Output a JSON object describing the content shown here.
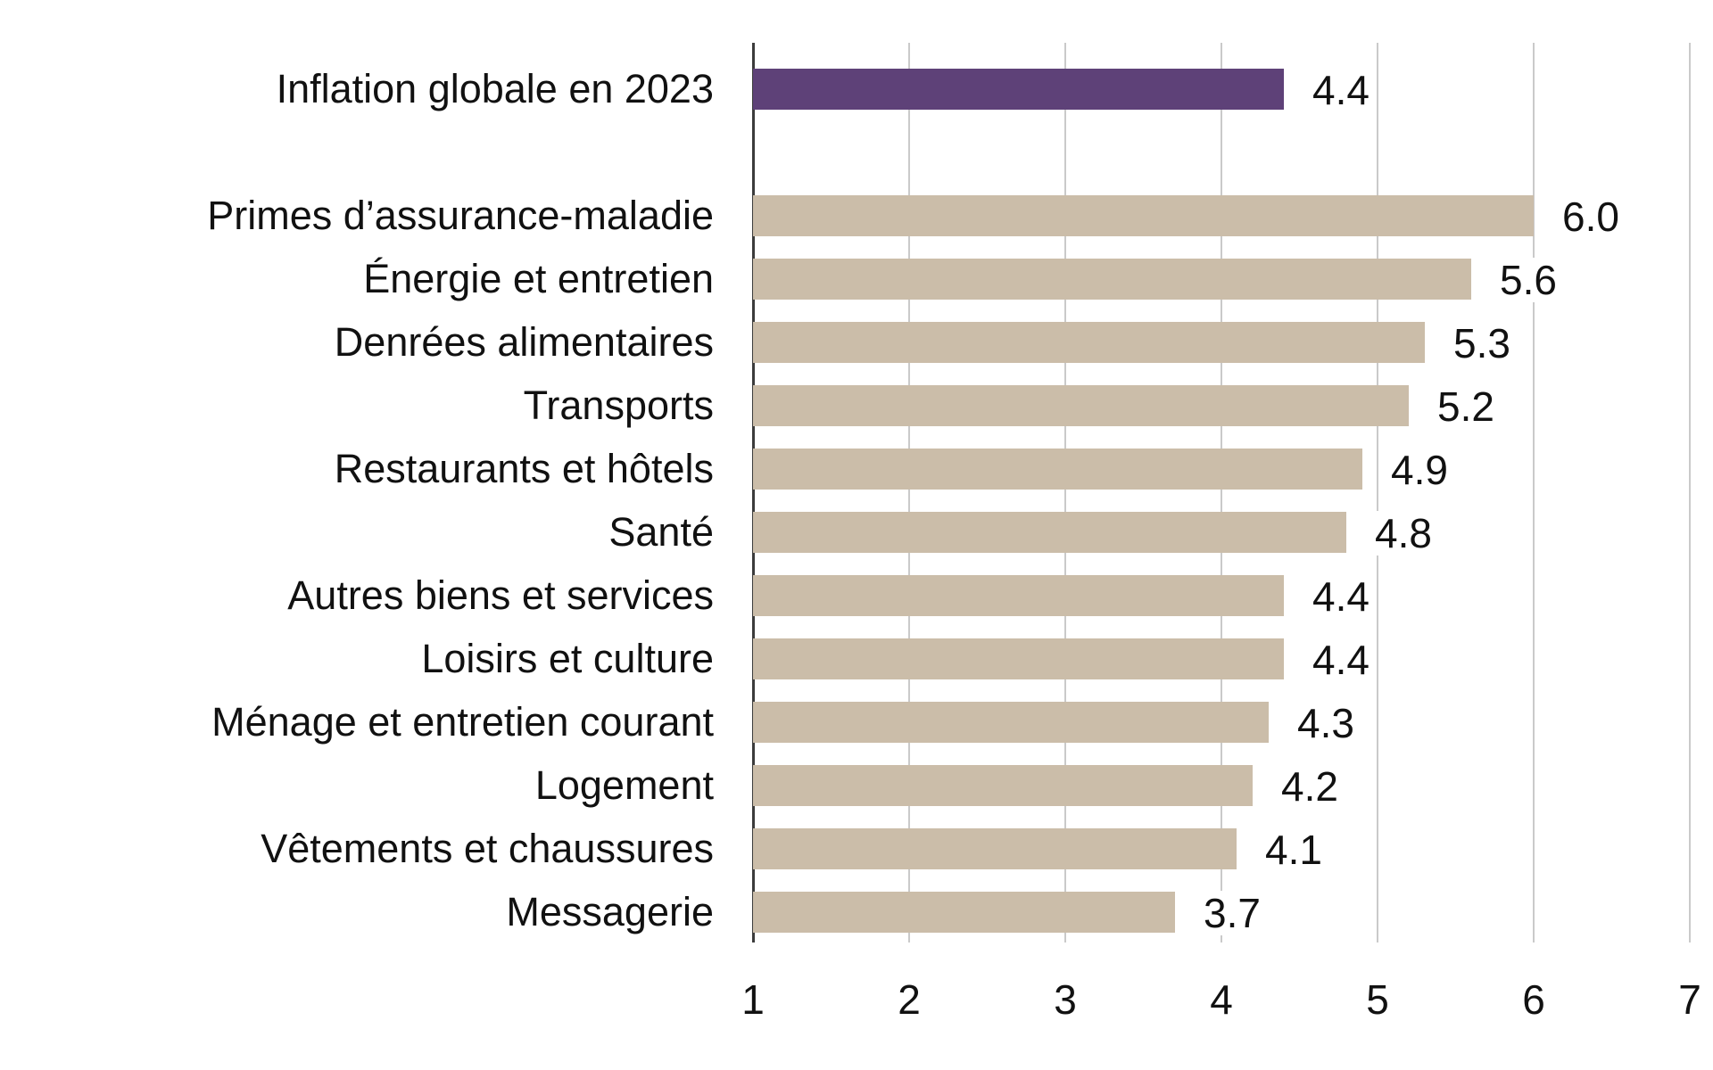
{
  "chart_data": {
    "type": "bar",
    "orientation": "horizontal",
    "title": "",
    "rows": [
      {
        "label": "Inflation globale en 2023",
        "value": 4.4,
        "display": "4.4",
        "highlight": true
      },
      {
        "label": "Primes d’assurance-maladie",
        "value": 6.0,
        "display": "6.0",
        "highlight": false
      },
      {
        "label": "Énergie et entretien",
        "value": 5.6,
        "display": "5.6",
        "highlight": false
      },
      {
        "label": "Denrées alimentaires",
        "value": 5.3,
        "display": "5.3",
        "highlight": false
      },
      {
        "label": "Transports",
        "value": 5.2,
        "display": "5.2",
        "highlight": false
      },
      {
        "label": "Restaurants et hôtels",
        "value": 4.9,
        "display": "4.9",
        "highlight": false
      },
      {
        "label": "Santé",
        "value": 4.8,
        "display": "4.8",
        "highlight": false
      },
      {
        "label": "Autres biens et services",
        "value": 4.4,
        "display": "4.4",
        "highlight": false
      },
      {
        "label": "Loisirs et culture",
        "value": 4.4,
        "display": "4.4",
        "highlight": false
      },
      {
        "label": "Ménage et entretien courant",
        "value": 4.3,
        "display": "4.3",
        "highlight": false
      },
      {
        "label": "Logement",
        "value": 4.2,
        "display": "4.2",
        "highlight": false
      },
      {
        "label": "Vêtements et chaussures",
        "value": 4.1,
        "display": "4.1",
        "highlight": false
      },
      {
        "label": "Messagerie",
        "value": 3.7,
        "display": "3.7",
        "highlight": false
      }
    ],
    "x_ticks": [
      "1",
      "2",
      "3",
      "4",
      "5",
      "6",
      "7"
    ],
    "xlim": [
      1,
      7
    ],
    "grid": "vertical",
    "legend": "none",
    "colors": {
      "highlight_bar": "#5e4178",
      "bar": "#cbbda9",
      "gridline": "#cacaca",
      "axis_line": "#3c3c3c",
      "text": "#111111",
      "background": "#ffffff"
    }
  }
}
